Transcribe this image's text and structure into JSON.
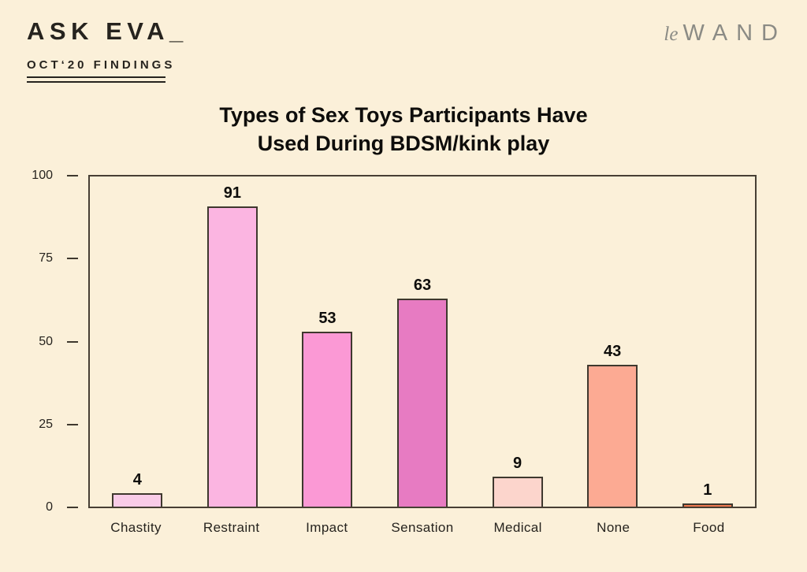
{
  "header": {
    "brand": "ASK EVA_",
    "subtitle": "OCT‘20 FINDINGS",
    "logo_le": "le",
    "logo_wand": "WAND"
  },
  "chart_data": {
    "type": "bar",
    "title": "Types of Sex Toys Participants Have Used During BDSM/kink play",
    "title_line1": "Types of Sex Toys Participants Have",
    "title_line2": "Used During BDSM/kink play",
    "categories": [
      "Chastity",
      "Restraint",
      "Impact",
      "Sensation",
      "Medical",
      "None",
      "Food"
    ],
    "values": [
      4,
      91,
      53,
      63,
      9,
      43,
      1
    ],
    "bar_colors": [
      "#F9CCE8",
      "#FBB5E1",
      "#FB99D5",
      "#E77BC2",
      "#FCD5CC",
      "#FCAA93",
      "#EE7950"
    ],
    "xlabel": "",
    "ylabel": "",
    "ylim": [
      0,
      100
    ],
    "yticks": [
      100,
      75,
      50,
      25,
      0
    ],
    "grid": false,
    "legend": "none"
  },
  "colors": {
    "background": "#FBF0D9",
    "frame_border": "#473F34",
    "bar_border": "#3E382E",
    "text": "#26231E",
    "logo_gray": "#8B8B85"
  }
}
